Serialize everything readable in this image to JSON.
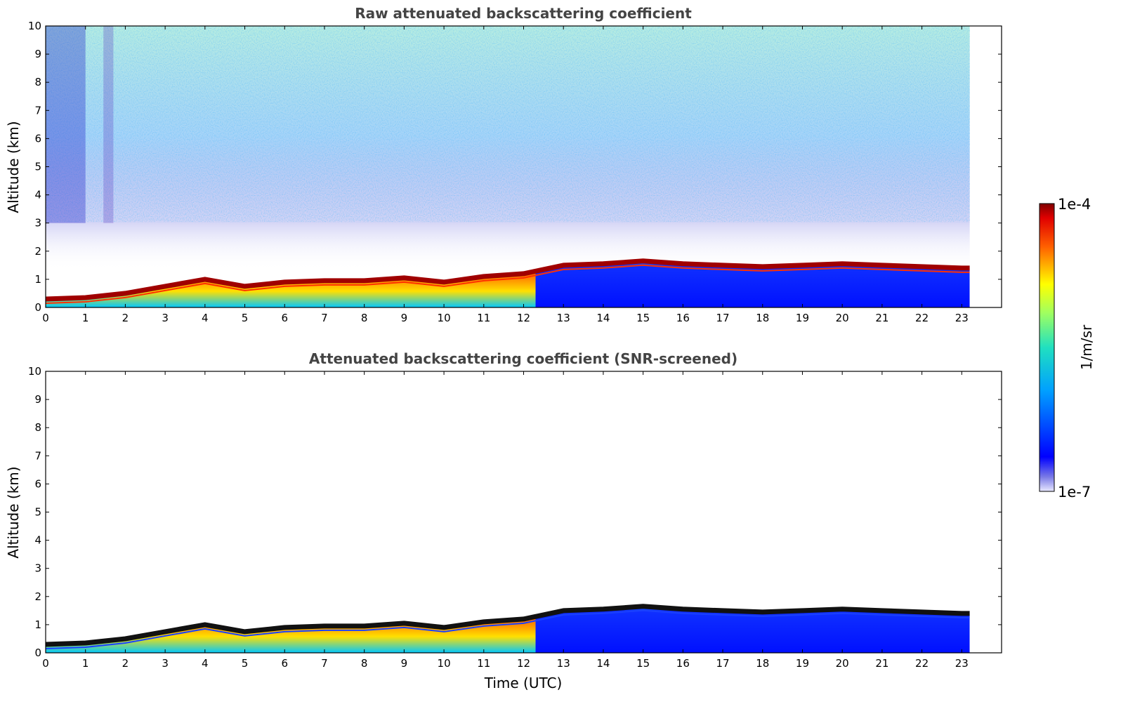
{
  "chart_data": [
    {
      "type": "heatmap",
      "title": "Raw attenuated backscattering coefficient",
      "xlabel": "",
      "ylabel": "Altitude (km)",
      "xlim": [
        0,
        24
      ],
      "ylim": [
        0,
        10
      ],
      "x_ticks": [
        "0",
        "1",
        "2",
        "3",
        "4",
        "5",
        "6",
        "7",
        "8",
        "9",
        "10",
        "11",
        "12",
        "13",
        "14",
        "15",
        "16",
        "17",
        "18",
        "19",
        "20",
        "21",
        "22",
        "23"
      ],
      "y_ticks": [
        "0",
        "1",
        "2",
        "3",
        "4",
        "5",
        "6",
        "7",
        "8",
        "9",
        "10"
      ],
      "data_end_time": 23.2,
      "boundary_layer_top_km": [
        [
          0,
          0.3
        ],
        [
          1,
          0.35
        ],
        [
          2,
          0.5
        ],
        [
          3,
          0.75
        ],
        [
          4,
          1.0
        ],
        [
          5,
          0.75
        ],
        [
          6,
          0.9
        ],
        [
          7,
          0.95
        ],
        [
          8,
          0.95
        ],
        [
          9,
          1.05
        ],
        [
          10,
          0.9
        ],
        [
          11,
          1.1
        ],
        [
          12,
          1.2
        ],
        [
          13,
          1.5
        ],
        [
          14,
          1.55
        ],
        [
          15,
          1.65
        ],
        [
          16,
          1.55
        ],
        [
          17,
          1.5
        ],
        [
          18,
          1.45
        ],
        [
          19,
          1.5
        ],
        [
          20,
          1.55
        ],
        [
          21,
          1.5
        ],
        [
          22,
          1.45
        ],
        [
          23,
          1.4
        ]
      ],
      "noise_field": "speckled molecular background 2–10 km"
    },
    {
      "type": "heatmap",
      "title": "Attenuated backscattering coefficient (SNR-screened)",
      "xlabel": "Time (UTC)",
      "ylabel": "Altitude (km)",
      "xlim": [
        0,
        24
      ],
      "ylim": [
        0,
        10
      ],
      "x_ticks": [
        "0",
        "1",
        "2",
        "3",
        "4",
        "5",
        "6",
        "7",
        "8",
        "9",
        "10",
        "11",
        "12",
        "13",
        "14",
        "15",
        "16",
        "17",
        "18",
        "19",
        "20",
        "21",
        "22",
        "23"
      ],
      "y_ticks": [
        "0",
        "1",
        "2",
        "3",
        "4",
        "5",
        "6",
        "7",
        "8",
        "9",
        "10"
      ],
      "data_end_time": 23.2,
      "boundary_layer_top_km": [
        [
          0,
          0.3
        ],
        [
          1,
          0.35
        ],
        [
          2,
          0.5
        ],
        [
          3,
          0.75
        ],
        [
          4,
          1.0
        ],
        [
          5,
          0.75
        ],
        [
          6,
          0.9
        ],
        [
          7,
          0.95
        ],
        [
          8,
          0.95
        ],
        [
          9,
          1.05
        ],
        [
          10,
          0.9
        ],
        [
          11,
          1.1
        ],
        [
          12,
          1.2
        ],
        [
          13,
          1.5
        ],
        [
          14,
          1.55
        ],
        [
          15,
          1.65
        ],
        [
          16,
          1.55
        ],
        [
          17,
          1.5
        ],
        [
          18,
          1.45
        ],
        [
          19,
          1.5
        ],
        [
          20,
          1.55
        ],
        [
          21,
          1.5
        ],
        [
          22,
          1.45
        ],
        [
          23,
          1.4
        ]
      ],
      "noise_field": "screened out above boundary layer"
    }
  ],
  "colorbar": {
    "max_label": "1e-4",
    "min_label": "1e-7",
    "unit_label": "1/m/sr",
    "colormap": "jet"
  }
}
